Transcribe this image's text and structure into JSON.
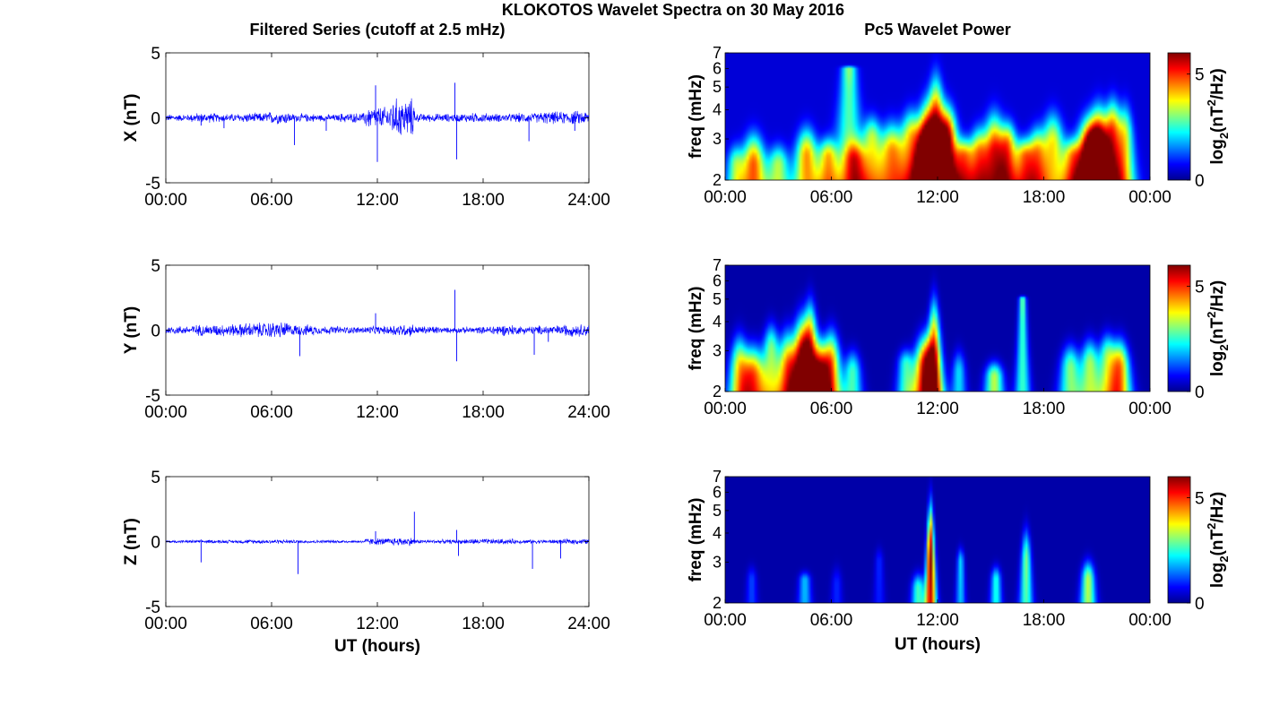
{
  "figure": {
    "title": "KLOKOTOS Wavelet Spectra on 30 May 2016",
    "left_title": "Filtered Series (cutoff at 2.5 mHz)",
    "right_title": "Pc5 Wavelet Power"
  },
  "chart_data": [
    {
      "type": "line",
      "name": "X",
      "ylabel": "X (nT)",
      "xlabel": "",
      "xticks": [
        "00:00",
        "06:00",
        "12:00",
        "18:00",
        "24:00"
      ],
      "xlim_hours": [
        0,
        24
      ],
      "ylim": [
        -5,
        5
      ],
      "yticks": [
        5,
        0,
        -5
      ],
      "line_color": "#0000ff",
      "noise_amplitude_nT": [
        0.25,
        0.35,
        0.3,
        0.35,
        0.45,
        0.3,
        0.25,
        0.35,
        0.8,
        1.4,
        0.3,
        0.3,
        0.35,
        0.3,
        0.35,
        0.45,
        0.5
      ],
      "spikes": [
        [
          2.0,
          -0.6
        ],
        [
          3.3,
          -0.8
        ],
        [
          7.3,
          -2.1
        ],
        [
          9.1,
          -1.0
        ],
        [
          11.9,
          2.5
        ],
        [
          12.0,
          -3.4
        ],
        [
          16.4,
          2.7
        ],
        [
          16.5,
          -3.2
        ],
        [
          20.6,
          -1.8
        ],
        [
          23.2,
          -1.0
        ]
      ]
    },
    {
      "type": "line",
      "name": "Y",
      "ylabel": "Y (nT)",
      "xlabel": "",
      "xticks": [
        "00:00",
        "06:00",
        "12:00",
        "18:00",
        "24:00"
      ],
      "xlim_hours": [
        0,
        24
      ],
      "ylim": [
        -5,
        5
      ],
      "yticks": [
        5,
        0,
        -5
      ],
      "line_color": "#0000ff",
      "noise_amplitude_nT": [
        0.3,
        0.4,
        0.45,
        0.55,
        0.6,
        0.4,
        0.3,
        0.25,
        0.3,
        0.45,
        0.3,
        0.2,
        0.25,
        0.4,
        0.3,
        0.35,
        0.45
      ],
      "spikes": [
        [
          7.6,
          -2.0
        ],
        [
          11.9,
          1.3
        ],
        [
          16.4,
          3.1
        ],
        [
          16.5,
          -2.4
        ],
        [
          20.9,
          -1.9
        ],
        [
          21.7,
          -0.9
        ]
      ]
    },
    {
      "type": "line",
      "name": "Z",
      "ylabel": "Z (nT)",
      "xlabel": "UT (hours)",
      "xticks": [
        "00:00",
        "06:00",
        "12:00",
        "18:00",
        "24:00"
      ],
      "xlim_hours": [
        0,
        24
      ],
      "ylim": [
        -5,
        5
      ],
      "yticks": [
        5,
        0,
        -5
      ],
      "line_color": "#0000ff",
      "noise_amplitude_nT": [
        0.1,
        0.12,
        0.12,
        0.15,
        0.15,
        0.12,
        0.12,
        0.1,
        0.25,
        0.3,
        0.15,
        0.15,
        0.2,
        0.2,
        0.15,
        0.15,
        0.2
      ],
      "spikes": [
        [
          2.0,
          -1.6
        ],
        [
          7.5,
          -2.5
        ],
        [
          11.9,
          0.8
        ],
        [
          14.1,
          2.3
        ],
        [
          16.5,
          0.9
        ],
        [
          16.6,
          -1.1
        ],
        [
          20.8,
          -2.1
        ],
        [
          22.4,
          -1.3
        ]
      ]
    },
    {
      "type": "heatmap",
      "name": "X",
      "ylabel": "freq (mHz)",
      "xlabel": "",
      "xticks": [
        "00:00",
        "06:00",
        "12:00",
        "18:00",
        "00:00"
      ],
      "xlim_hours": [
        0,
        24
      ],
      "ylim_mHz": [
        2,
        7
      ],
      "y_scale": "log",
      "yticks": [
        2,
        3,
        4,
        5,
        6,
        7
      ],
      "colorbar_label": "log2(nT^2/Hz)",
      "colorbar_ticks": [
        0,
        5
      ],
      "clim": [
        0,
        6
      ],
      "colormap": "jet",
      "background_level": 0.3,
      "blobs": [
        [
          1.6,
          2.3,
          0.7,
          4.6,
          3.4
        ],
        [
          3.0,
          2.3,
          0.6,
          3.0,
          3.0
        ],
        [
          4.6,
          2.5,
          0.7,
          4.2,
          3.6
        ],
        [
          5.8,
          2.5,
          0.6,
          3.6,
          3.2
        ],
        [
          7.0,
          6.0,
          1.0,
          2.8,
          4.5
        ],
        [
          7.3,
          2.4,
          0.7,
          3.2,
          3.2
        ],
        [
          8.3,
          3.0,
          0.7,
          3.0,
          4.0
        ],
        [
          9.4,
          2.6,
          0.8,
          4.0,
          3.8
        ],
        [
          10.5,
          3.0,
          0.8,
          3.6,
          4.3
        ],
        [
          11.3,
          2.6,
          0.7,
          5.4,
          4.6
        ],
        [
          11.9,
          3.0,
          0.8,
          6.2,
          6.0
        ],
        [
          12.6,
          3.0,
          0.7,
          4.8,
          4.5
        ],
        [
          13.5,
          2.5,
          0.6,
          3.8,
          3.2
        ],
        [
          14.3,
          2.6,
          0.6,
          3.4,
          3.6
        ],
        [
          15.2,
          2.6,
          0.8,
          5.0,
          4.2
        ],
        [
          16.0,
          2.8,
          0.6,
          3.6,
          3.8
        ],
        [
          16.9,
          2.5,
          0.6,
          3.8,
          3.2
        ],
        [
          17.6,
          2.6,
          0.6,
          3.4,
          3.6
        ],
        [
          18.5,
          2.8,
          0.8,
          3.6,
          4.2
        ],
        [
          19.6,
          2.5,
          0.6,
          3.2,
          3.2
        ],
        [
          20.5,
          2.6,
          0.8,
          5.2,
          4.0
        ],
        [
          21.1,
          2.8,
          0.8,
          5.8,
          4.5
        ],
        [
          21.9,
          3.2,
          0.7,
          4.2,
          4.8
        ],
        [
          22.6,
          3.0,
          0.6,
          3.0,
          4.6
        ],
        [
          0.6,
          2.3,
          0.5,
          2.6,
          3.0
        ]
      ]
    },
    {
      "type": "heatmap",
      "name": "Y",
      "ylabel": "freq (mHz)",
      "xlabel": "",
      "xticks": [
        "00:00",
        "06:00",
        "12:00",
        "18:00",
        "00:00"
      ],
      "xlim_hours": [
        0,
        24
      ],
      "ylim_mHz": [
        2,
        7
      ],
      "y_scale": "log",
      "yticks": [
        2,
        3,
        4,
        5,
        6,
        7
      ],
      "colorbar_label": "log2(nT^2/Hz)",
      "colorbar_ticks": [
        0,
        5
      ],
      "clim": [
        0,
        6
      ],
      "colormap": "jet",
      "background_level": 0.0,
      "blobs": [
        [
          0.8,
          2.5,
          0.6,
          3.6,
          3.8
        ],
        [
          1.6,
          2.3,
          0.7,
          4.6,
          3.4
        ],
        [
          2.6,
          3.0,
          0.6,
          3.0,
          4.2
        ],
        [
          3.5,
          2.5,
          0.6,
          4.0,
          4.0
        ],
        [
          4.3,
          2.6,
          0.7,
          5.6,
          4.6
        ],
        [
          4.8,
          3.2,
          0.6,
          4.2,
          5.4
        ],
        [
          5.4,
          2.4,
          0.6,
          4.4,
          3.6
        ],
        [
          6.0,
          2.6,
          0.6,
          4.2,
          4.0
        ],
        [
          7.2,
          2.4,
          0.5,
          2.6,
          3.2
        ],
        [
          10.2,
          2.6,
          0.5,
          2.4,
          3.2
        ],
        [
          11.3,
          2.5,
          0.7,
          5.6,
          3.8
        ],
        [
          11.8,
          3.0,
          0.5,
          4.6,
          5.6
        ],
        [
          13.2,
          2.4,
          0.4,
          2.0,
          3.2
        ],
        [
          15.2,
          2.3,
          0.5,
          3.4,
          2.8
        ],
        [
          16.8,
          5.0,
          0.4,
          3.0,
          4.0
        ],
        [
          19.5,
          2.5,
          0.6,
          3.0,
          3.4
        ],
        [
          20.6,
          2.6,
          0.6,
          3.2,
          3.6
        ],
        [
          21.6,
          2.8,
          0.6,
          3.0,
          3.8
        ],
        [
          22.3,
          2.5,
          0.6,
          4.4,
          3.6
        ]
      ]
    },
    {
      "type": "heatmap",
      "name": "Z",
      "ylabel": "freq (mHz)",
      "xlabel": "UT (hours)",
      "xticks": [
        "00:00",
        "06:00",
        "12:00",
        "18:00",
        "00:00"
      ],
      "xlim_hours": [
        0,
        24
      ],
      "ylim_mHz": [
        2,
        7
      ],
      "y_scale": "log",
      "yticks": [
        2,
        3,
        4,
        5,
        6,
        7
      ],
      "colorbar_label": "log2(nT^2/Hz)",
      "colorbar_ticks": [
        0,
        5
      ],
      "clim": [
        0,
        6
      ],
      "colormap": "jet",
      "background_level": 0.0,
      "blobs": [
        [
          4.5,
          2.5,
          0.35,
          1.8,
          2.8
        ],
        [
          10.9,
          2.3,
          0.35,
          2.6,
          2.8
        ],
        [
          11.6,
          3.0,
          0.3,
          6.3,
          6.0
        ],
        [
          13.3,
          3.0,
          0.25,
          2.0,
          3.6
        ],
        [
          15.3,
          2.5,
          0.3,
          2.4,
          3.0
        ],
        [
          17.0,
          3.0,
          0.35,
          3.0,
          4.5
        ],
        [
          20.5,
          2.5,
          0.4,
          3.4,
          3.2
        ],
        [
          1.5,
          2.5,
          0.3,
          1.0,
          3.0
        ],
        [
          6.3,
          2.4,
          0.3,
          0.8,
          3.0
        ],
        [
          8.7,
          3.0,
          0.3,
          0.8,
          3.6
        ]
      ]
    }
  ]
}
